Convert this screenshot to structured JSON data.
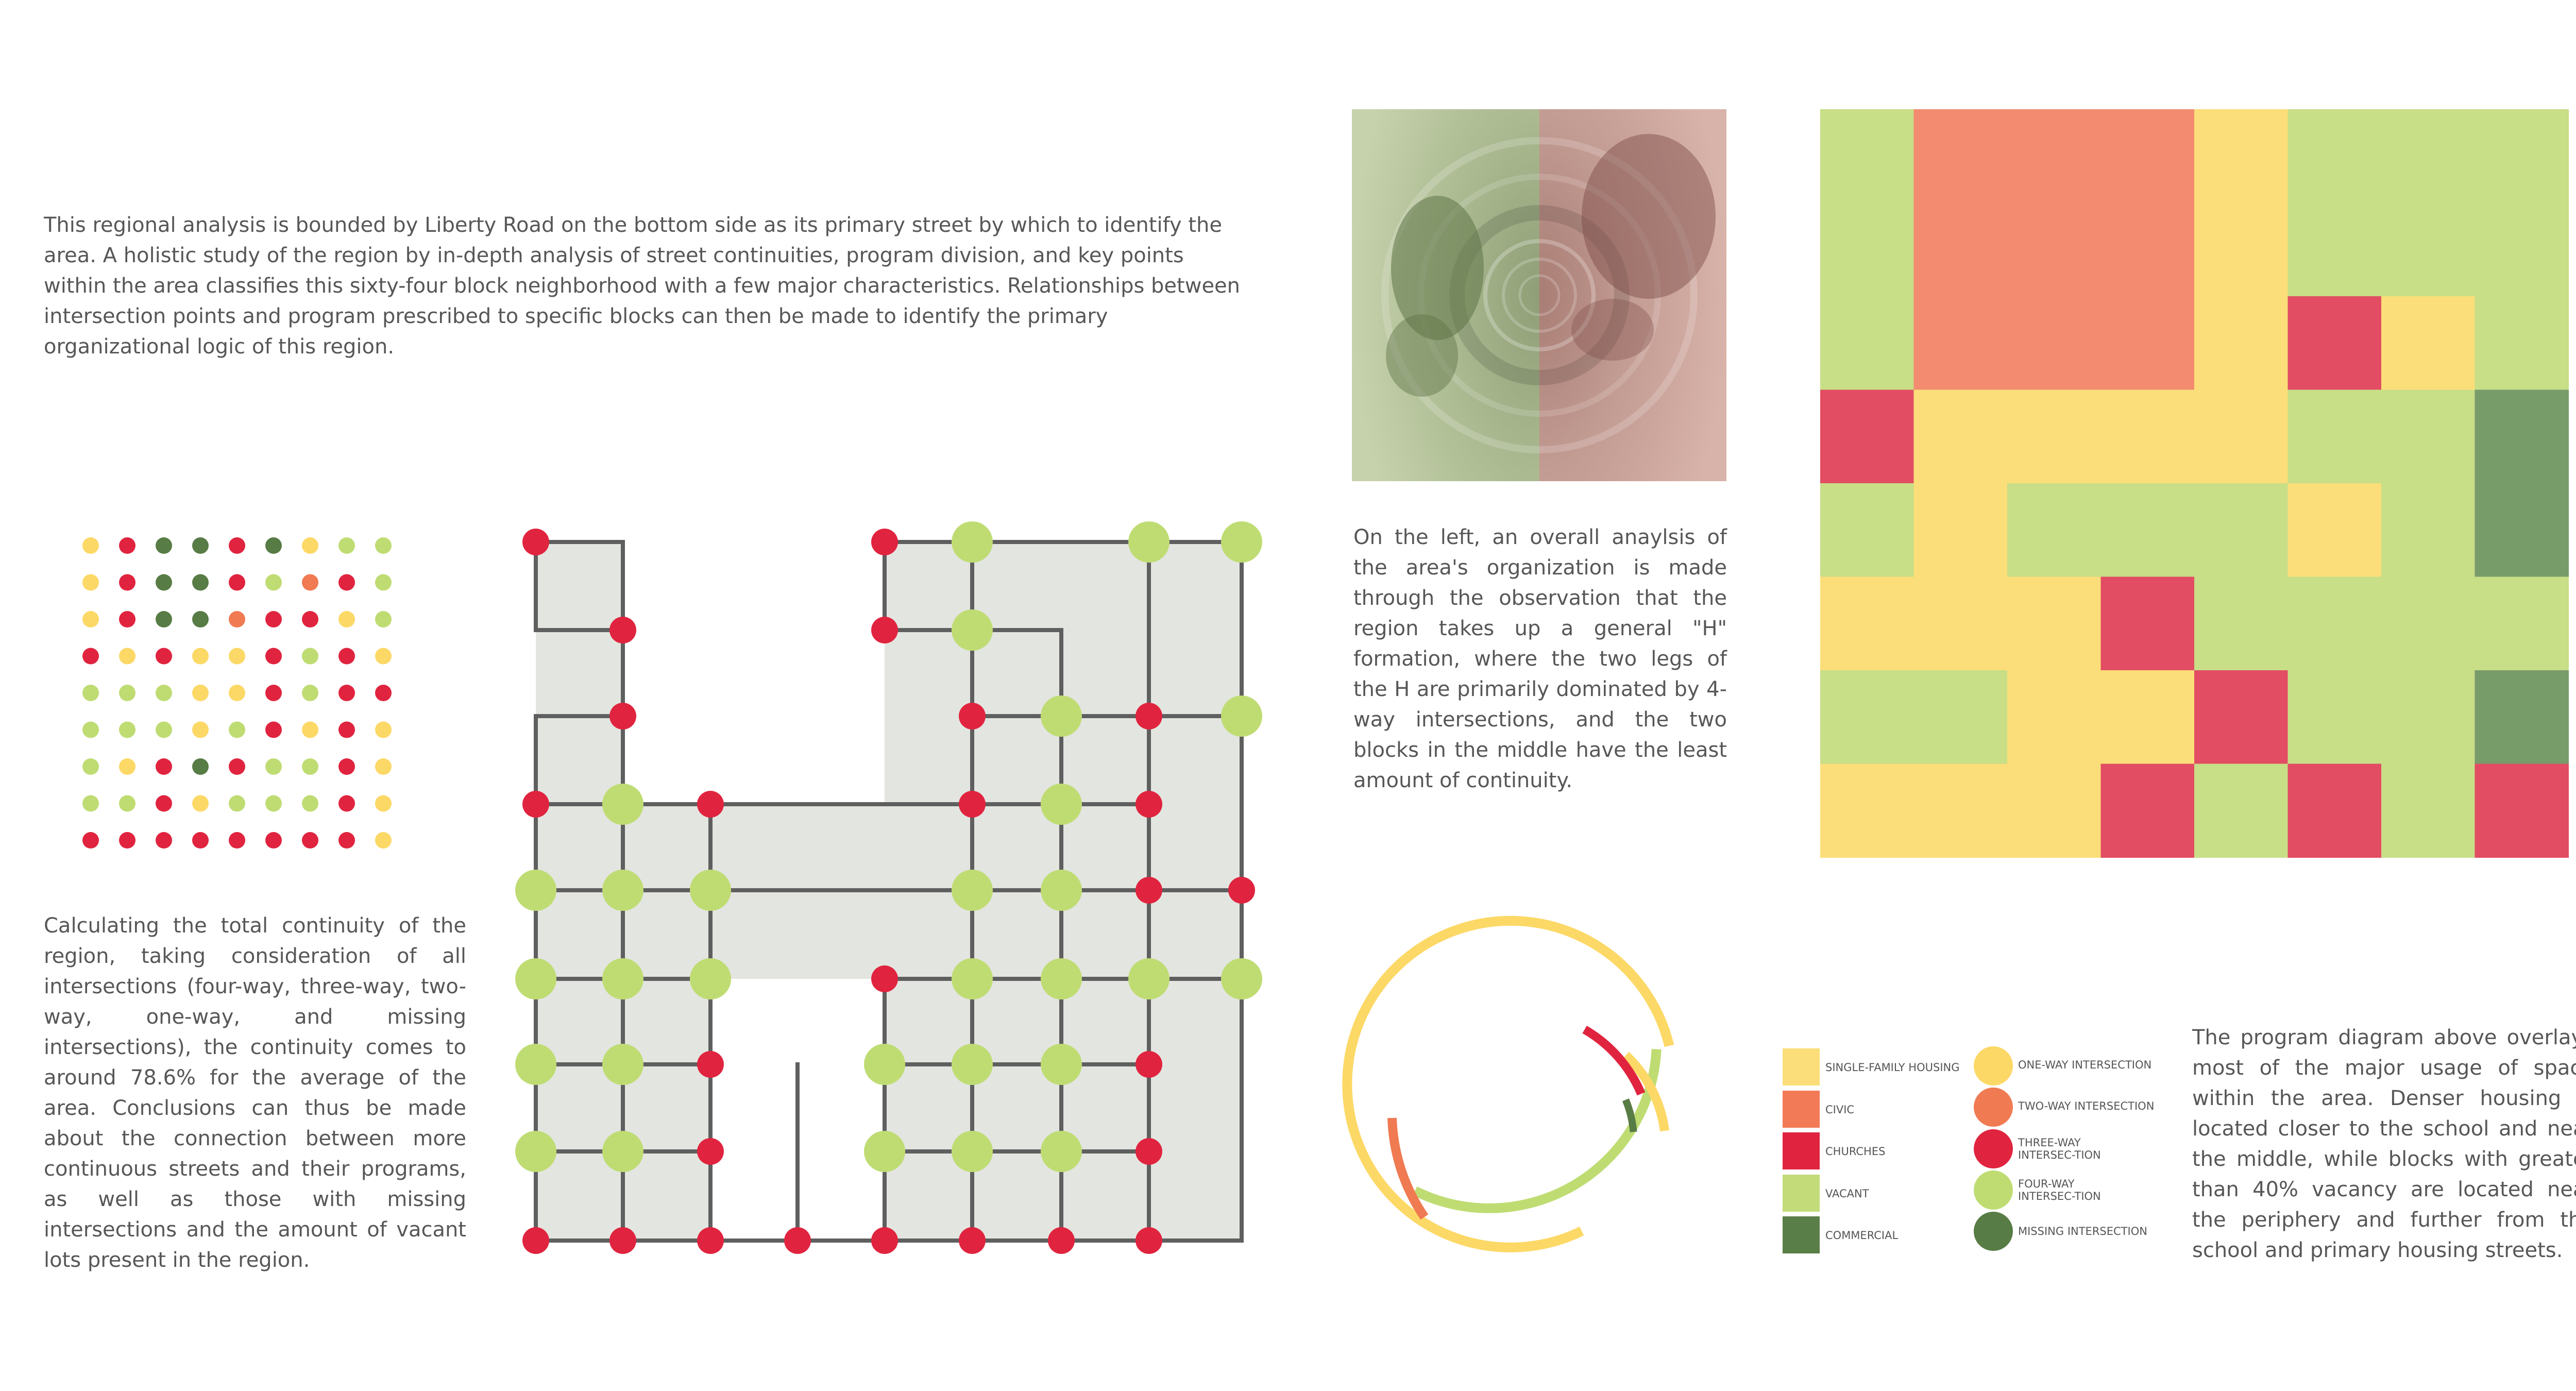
{
  "texts": {
    "intro": "This regional analysis is bounded by Liberty Road on the bottom side as its primary street by which to identify the area. A holistic study of the region by in-depth analysis of street continuities, program division, and key points within the area classifies this sixty-four block neighborhood with a few major characteristics. Relationships between intersection points and program prescribed to specific blocks can then be made to identify the primary organizational logic of this region.",
    "continuity": "Calculating the total continuity of the region, taking consideration of all intersections (four-way, three-way, two-way, one-way, and missing intersections), the continuity comes to around 78.6% for the average of the area. Conclusions can thus be made about the connection between more continuous streets and their programs, as well as those with missing intersections and the amount of vacant lots present in the region.",
    "organization": "On the left, an overall anaylsis of the area's organization is made through the observation that the region takes up a general \"H\" formation, where the two legs of the H are primarily dominated by 4-way intersections, and the two blocks in the middle have the least amount of continuity.",
    "program": "The program diagram above overlays most of the major usage of space within the area. Denser housing is located closer to the school and near the middle, while blocks with greater than 40% vacancy are located near the periphery and further from the school and primary housing streets."
  },
  "colors": {
    "single_family": "#fbde79",
    "civic": "#f28b6f",
    "churches": "#e24d63",
    "vacant": "#c8de87",
    "commercial": "#789b6a",
    "one_way": "#fcd866",
    "two_way": "#f07a52",
    "three_way": "#e0243f",
    "four_way": "#bfdc73",
    "missing": "#577c45"
  },
  "legend": {
    "programs": [
      {
        "label": "SINGLE-FAMILY HOUSING",
        "color": "#fbde79"
      },
      {
        "label": "CIVIC",
        "color": "#f27a56"
      },
      {
        "label": "CHURCHES",
        "color": "#e0243f"
      },
      {
        "label": "VACANT",
        "color": "#c3db78"
      },
      {
        "label": "COMMERCIAL",
        "color": "#5a7e47"
      }
    ],
    "intersections": [
      {
        "label": "ONE-WAY INTERSECTION",
        "color": "#fcd866"
      },
      {
        "label": "TWO-WAY INTERSECTION",
        "color": "#f07a52"
      },
      {
        "label": "THREE-WAY INTERSEC-TION",
        "color": "#e0243f"
      },
      {
        "label": "FOUR-WAY INTERSEC-TION",
        "color": "#bfdc73"
      },
      {
        "label": "MISSING INTERSECTION",
        "color": "#577c45"
      }
    ]
  },
  "dot_matrix": [
    [
      "Y",
      "R",
      "G",
      "G",
      "R",
      "G",
      "Y",
      "V",
      "V"
    ],
    [
      "Y",
      "R",
      "G",
      "G",
      "R",
      "V",
      "O",
      "R",
      "V"
    ],
    [
      "Y",
      "R",
      "G",
      "G",
      "O",
      "R",
      "R",
      "Y",
      "V"
    ],
    [
      "R",
      "Y",
      "R",
      "Y",
      "Y",
      "R",
      "V",
      "R",
      "Y"
    ],
    [
      "V",
      "V",
      "V",
      "Y",
      "Y",
      "R",
      "V",
      "R",
      "R"
    ],
    [
      "V",
      "V",
      "V",
      "Y",
      "V",
      "R",
      "Y",
      "R",
      "Y"
    ],
    [
      "V",
      "Y",
      "R",
      "G",
      "R",
      "V",
      "V",
      "R",
      "Y"
    ],
    [
      "V",
      "V",
      "R",
      "Y",
      "V",
      "V",
      "V",
      "R",
      "Y"
    ],
    [
      "R",
      "R",
      "R",
      "R",
      "R",
      "R",
      "R",
      "R",
      "Y"
    ]
  ],
  "street_grid": {
    "intersections": [
      {
        "c": 0,
        "r": 0,
        "t": "R"
      },
      {
        "c": 4,
        "r": 0,
        "t": "R"
      },
      {
        "c": 5,
        "r": 0,
        "t": "V"
      },
      {
        "c": 7,
        "r": 0,
        "t": "V"
      },
      {
        "c": 8,
        "r": 0,
        "t": "V"
      },
      {
        "c": 1,
        "r": 1,
        "t": "R"
      },
      {
        "c": 4,
        "r": 1,
        "t": "R"
      },
      {
        "c": 5,
        "r": 1,
        "t": "V"
      },
      {
        "c": 1,
        "r": 2,
        "t": "R"
      },
      {
        "c": 5,
        "r": 2,
        "t": "R"
      },
      {
        "c": 6,
        "r": 2,
        "t": "V"
      },
      {
        "c": 7,
        "r": 2,
        "t": "R"
      },
      {
        "c": 8,
        "r": 2,
        "t": "V"
      },
      {
        "c": 0,
        "r": 3,
        "t": "R"
      },
      {
        "c": 1,
        "r": 3,
        "t": "V"
      },
      {
        "c": 2,
        "r": 3,
        "t": "R"
      },
      {
        "c": 5,
        "r": 3,
        "t": "R"
      },
      {
        "c": 6,
        "r": 3,
        "t": "V"
      },
      {
        "c": 7,
        "r": 3,
        "t": "R"
      },
      {
        "c": 0,
        "r": 4,
        "t": "V"
      },
      {
        "c": 1,
        "r": 4,
        "t": "V"
      },
      {
        "c": 2,
        "r": 4,
        "t": "V"
      },
      {
        "c": 5,
        "r": 4,
        "t": "V"
      },
      {
        "c": 6,
        "r": 4,
        "t": "V"
      },
      {
        "c": 7,
        "r": 4,
        "t": "R"
      },
      {
        "c": 8,
        "r": 4,
        "t": "R"
      },
      {
        "c": 0,
        "r": 5,
        "t": "V"
      },
      {
        "c": 1,
        "r": 5,
        "t": "V"
      },
      {
        "c": 2,
        "r": 5,
        "t": "V"
      },
      {
        "c": 4,
        "r": 5,
        "t": "R"
      },
      {
        "c": 5,
        "r": 5,
        "t": "V"
      },
      {
        "c": 6,
        "r": 5,
        "t": "V"
      },
      {
        "c": 7,
        "r": 5,
        "t": "V"
      },
      {
        "c": 8,
        "r": 5,
        "t": "V"
      },
      {
        "c": 0,
        "r": 6,
        "t": "V"
      },
      {
        "c": 1,
        "r": 6,
        "t": "V"
      },
      {
        "c": 2,
        "r": 6,
        "t": "R"
      },
      {
        "c": 4,
        "r": 6,
        "t": "V"
      },
      {
        "c": 5,
        "r": 6,
        "t": "V"
      },
      {
        "c": 6,
        "r": 6,
        "t": "V"
      },
      {
        "c": 7,
        "r": 6,
        "t": "R"
      },
      {
        "c": 0,
        "r": 7,
        "t": "V"
      },
      {
        "c": 1,
        "r": 7,
        "t": "V"
      },
      {
        "c": 2,
        "r": 7,
        "t": "R"
      },
      {
        "c": 4,
        "r": 7,
        "t": "V"
      },
      {
        "c": 5,
        "r": 7,
        "t": "V"
      },
      {
        "c": 6,
        "r": 7,
        "t": "V"
      },
      {
        "c": 7,
        "r": 7,
        "t": "R"
      },
      {
        "c": 0,
        "r": 8,
        "t": "R"
      },
      {
        "c": 1,
        "r": 8,
        "t": "R"
      },
      {
        "c": 2,
        "r": 8,
        "t": "R"
      },
      {
        "c": 3,
        "r": 8,
        "t": "R"
      },
      {
        "c": 4,
        "r": 8,
        "t": "R"
      },
      {
        "c": 5,
        "r": 8,
        "t": "R"
      },
      {
        "c": 6,
        "r": 8,
        "t": "R"
      },
      {
        "c": 7,
        "r": 8,
        "t": "R"
      }
    ]
  },
  "program_map": [
    [
      "V",
      "C",
      "C",
      "C",
      "Y",
      "V",
      "V",
      "V"
    ],
    [
      "V",
      "C",
      "C",
      "C",
      "Y",
      "V",
      "V",
      "V"
    ],
    [
      "V",
      "C",
      "C",
      "C",
      "Y",
      "R",
      "Y",
      "V"
    ],
    [
      "R",
      "Y",
      "Y",
      "Y",
      "Y",
      "V",
      "V",
      "G"
    ],
    [
      "V",
      "Y",
      "V",
      "V",
      "V",
      "Y",
      "V",
      "G"
    ],
    [
      "Y",
      "Y",
      "Y",
      "R",
      "V",
      "V",
      "V",
      "V"
    ],
    [
      "V",
      "V",
      "Y",
      "Y",
      "R",
      "V",
      "V",
      "G"
    ],
    [
      "Y",
      "Y",
      "Y",
      "R",
      "V",
      "R",
      "V",
      "R"
    ]
  ],
  "photo": {
    "left_tint": "green",
    "right_tint": "red"
  }
}
